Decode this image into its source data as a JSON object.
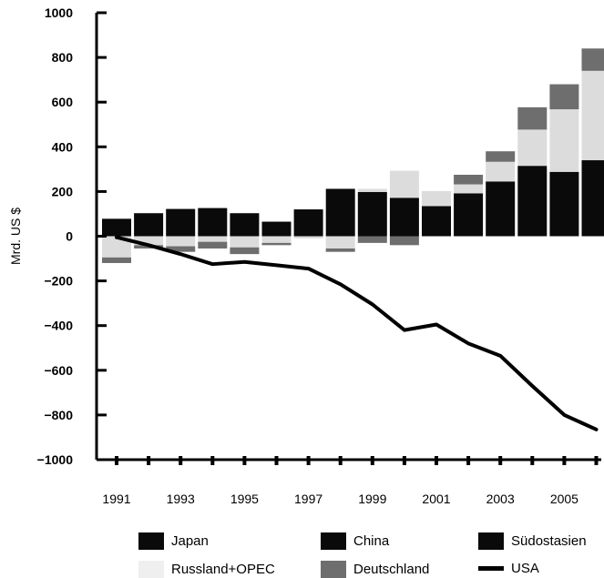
{
  "chart_data": {
    "type": "bar",
    "title": "",
    "xlabel": "",
    "ylabel": "Mrd. US $",
    "ylim": [
      -1000,
      1000
    ],
    "yticks": [
      1000,
      800,
      600,
      400,
      200,
      0,
      -200,
      -400,
      -600,
      -800,
      -1000
    ],
    "ytick_labels": [
      "1000",
      "800",
      "600",
      "400",
      "200",
      "0",
      "−200",
      "−400",
      "−600",
      "−800",
      "−1000"
    ],
    "years": [
      1991,
      1992,
      1993,
      1994,
      1995,
      1996,
      1997,
      1998,
      1999,
      2000,
      2001,
      2002,
      2003,
      2004,
      2005,
      2006
    ],
    "xtick_labels": [
      "1991",
      "1993",
      "1995",
      "1997",
      "1999",
      "2001",
      "2003",
      "2005"
    ],
    "colors": {
      "Japan": "#0a0a0a",
      "China": "#0a0a0a",
      "Südostasien": "#0a0a0a",
      "Russland+OPEC": "#dcdcdc",
      "Deutschland": "#6e6e6e",
      "USA": "#000000"
    },
    "positive_totals": [
      78,
      103,
      122,
      126,
      103,
      65,
      120,
      212,
      212,
      293,
      202,
      275,
      380,
      577,
      680,
      840
    ],
    "stacks": [
      {
        "name": "Japan",
        "values": [
          78,
          103,
          122,
          126,
          103,
          65,
          120,
          212,
          198,
          172,
          135,
          192,
          245,
          315,
          288,
          340
        ]
      },
      {
        "name": "Russland+OPEC",
        "values": [
          -95,
          -40,
          -45,
          -25,
          -50,
          -30,
          -10,
          -55,
          14,
          121,
          67,
          40,
          88,
          162,
          280,
          400
        ]
      },
      {
        "name": "Deutschland",
        "values": [
          -25,
          -15,
          -25,
          -30,
          -30,
          -10,
          0,
          -15,
          -30,
          -40,
          0,
          43,
          47,
          100,
          112,
          100
        ]
      }
    ],
    "series": [
      {
        "name": "USA",
        "type": "line",
        "values": [
          -5,
          -40,
          -80,
          -125,
          -115,
          -130,
          -145,
          -215,
          -305,
          -420,
          -395,
          -480,
          -535,
          -670,
          -800,
          -865
        ]
      }
    ],
    "legend": [
      "Japan",
      "China",
      "Südostasien",
      "Russland+OPEC",
      "Deutschland",
      "USA"
    ],
    "legend_position": "bottom",
    "grid": false
  },
  "legend": {
    "japan": "Japan",
    "china": "China",
    "suedostasien": "Südostasien",
    "russland_opec": "Russland+OPEC",
    "deutschland": "Deutschland",
    "usa": "USA"
  }
}
